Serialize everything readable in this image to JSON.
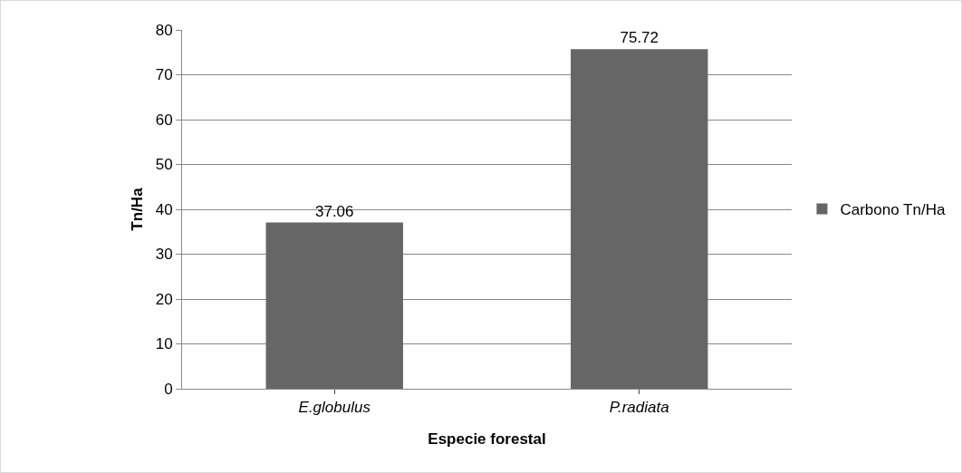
{
  "chart_data": {
    "type": "bar",
    "xlabel": "Especie forestal",
    "ylabel": "Tn/Ha",
    "categories": [
      "E.globulus",
      "P.radiata"
    ],
    "series": [
      {
        "name": "Carbono Tn/Ha",
        "color": "#666666",
        "values": [
          37.06,
          75.72
        ]
      }
    ],
    "ylim": [
      0,
      80
    ],
    "yticks": [
      0,
      10,
      20,
      30,
      40,
      50,
      60,
      70,
      80
    ],
    "grid": "y",
    "legend": "right",
    "data_labels": true
  }
}
